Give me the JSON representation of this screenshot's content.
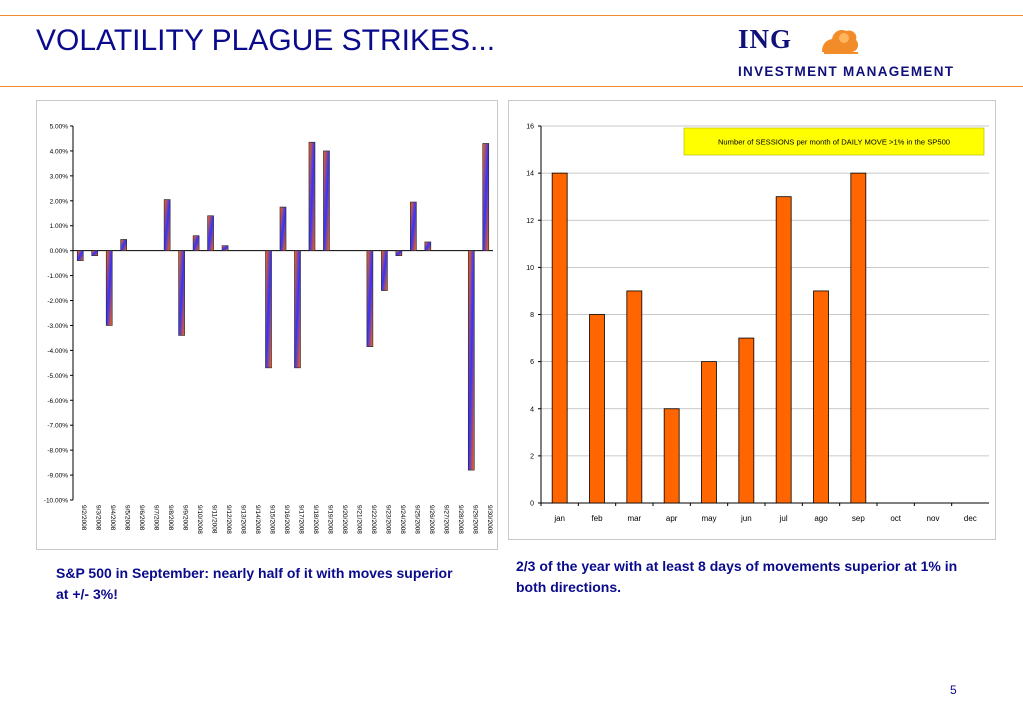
{
  "header": {
    "title": "VOLATILITY PLAGUE STRIKES...",
    "logo_ing": "ING",
    "logo_subtitle": "INVESTMENT MANAGEMENT"
  },
  "colors": {
    "accent": "#f28c28",
    "title_blue": "#0a0a8c",
    "bar_orange": "#ff6600",
    "bar_blue": "#3333ff",
    "label_box": "#ffff00"
  },
  "chart_data": [
    {
      "type": "bar",
      "title": "",
      "categories": [
        "9/2/2008",
        "9/3/2008",
        "9/4/2008",
        "9/5/2008",
        "9/6/2008",
        "9/7/2008",
        "9/8/2008",
        "9/9/2008",
        "9/10/2008",
        "9/11/2008",
        "9/12/2008",
        "9/13/2008",
        "9/14/2008",
        "9/15/2008",
        "9/16/2008",
        "9/17/2008",
        "9/18/2008",
        "9/19/2008",
        "9/20/2008",
        "9/21/2008",
        "9/22/2008",
        "9/23/2008",
        "9/24/2008",
        "9/25/2008",
        "9/26/2008",
        "9/27/2008",
        "9/28/2008",
        "9/29/2008",
        "9/30/2008"
      ],
      "values": [
        -0.4,
        -0.2,
        -3.0,
        0.45,
        0,
        0,
        2.05,
        -3.4,
        0.6,
        1.4,
        0.2,
        0,
        0,
        -4.7,
        1.75,
        -4.7,
        4.35,
        4.0,
        0,
        0,
        -3.85,
        -1.6,
        -0.2,
        1.95,
        0.35,
        0,
        0,
        -8.8,
        4.3
      ],
      "yticks": [
        "5.00%",
        "4.00%",
        "3.00%",
        "2.00%",
        "1.00%",
        "0.00%",
        "-1.00%",
        "-2.00%",
        "-3.00%",
        "-4.00%",
        "-5.00%",
        "-6.00%",
        "-7.00%",
        "-8.00%",
        "-9.00%",
        "-10.00%"
      ],
      "ylim": [
        -10,
        5
      ],
      "xlabel": "",
      "ylabel": "",
      "grid": false
    },
    {
      "type": "bar",
      "title": "Number of SESSIONS per month of DAILY MOVE >1% in the SP500",
      "categories": [
        "jan",
        "feb",
        "mar",
        "apr",
        "may",
        "jun",
        "jul",
        "ago",
        "sep",
        "oct",
        "nov",
        "dec"
      ],
      "values": [
        14,
        8,
        9,
        4,
        6,
        7,
        13,
        9,
        14,
        0,
        0,
        0
      ],
      "yticks": [
        "16",
        "14",
        "12",
        "10",
        "8",
        "6",
        "4",
        "2",
        "0"
      ],
      "ylim": [
        0,
        16
      ],
      "xlabel": "",
      "ylabel": "",
      "grid": true,
      "legend": "top-right"
    }
  ],
  "captions": {
    "left": "S&P 500 in September: nearly half of it with moves superior at +/- 3%!",
    "right": "2/3 of the year with at least 8 days of movements superior at 1% in both directions."
  },
  "page_number": "5"
}
